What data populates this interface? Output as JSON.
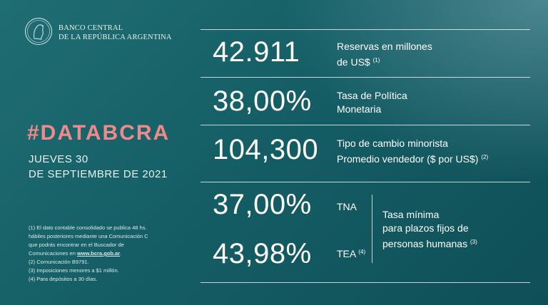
{
  "header": {
    "bank_line1": "BANCO CENTRAL",
    "bank_line2": "DE LA REPÚBLICA ARGENTINA",
    "logo_icon": "bcra-seal-icon"
  },
  "left": {
    "hashtag": "#DATABCRA",
    "date_line1": "JUEVES 30",
    "date_line2": "DE SEPTIEMBRE DE 2021",
    "footnotes": {
      "n1_a": "(1) El dato contable consolidado se publica 48 hs.",
      "n1_b": "hábiles posteriores mediante una Comunicación C",
      "n1_c": "que podrás encontrar en el Buscador de",
      "n1_d_pre": "Comunicaciones en ",
      "n1_d_link": "www.bcra.gob.ar",
      "n1_d_post": ".",
      "n2": "(2) Comunicación B9791.",
      "n3": "(3) Imposiciones menores a $1 millón.",
      "n4": "(4) Para depósitos a 30 días."
    }
  },
  "metrics": {
    "reservas": {
      "value": "42.911",
      "label1": "Reservas en millones",
      "label2": "de US$",
      "note": "(1)"
    },
    "tasa": {
      "value": "38,00%",
      "label1": "Tasa de Política",
      "label2": "Monetaria"
    },
    "cambio": {
      "value": "104,300",
      "label1": "Tipo de cambio minorista",
      "label2": "Promedio vendedor  ($ por US$)",
      "note": "(2)"
    },
    "tna": {
      "value": "37,00%",
      "label": "TNA"
    },
    "tea": {
      "value": "43,98%",
      "label": "TEA",
      "note": "(4)"
    },
    "plazos": {
      "line1": "Tasa mínima",
      "line2": "para plazos fijos de",
      "line3": "personas humanas",
      "note": "(3)"
    }
  },
  "colors": {
    "accent": "#f08a8a",
    "bg_dark": "#0f4f57",
    "bg_mid": "#1f6e73"
  }
}
